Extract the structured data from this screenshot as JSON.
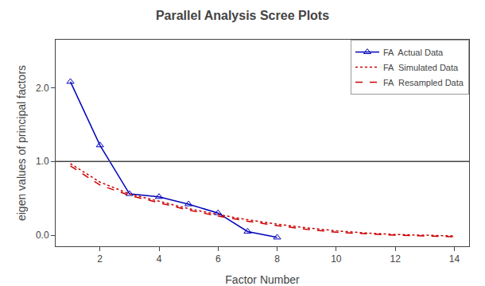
{
  "chart_data": {
    "type": "line",
    "title": "Parallel Analysis Scree Plots",
    "xlabel": "Factor Number",
    "ylabel": "eigen values of principal factors",
    "series": [
      {
        "name": "FA  Actual Data",
        "color": "#0000bb",
        "line_style": "solid",
        "marker": "open_triangle",
        "x": [
          1,
          2,
          3,
          4,
          5,
          6,
          7,
          8
        ],
        "values": [
          2.08,
          1.22,
          0.56,
          0.52,
          0.42,
          0.3,
          0.05,
          -0.03
        ]
      },
      {
        "name": "FA  Simulated Data",
        "color": "#cc0000",
        "line_style": "dotted",
        "x": [
          1,
          2,
          3,
          4,
          5,
          6,
          7,
          8,
          9,
          10,
          11,
          12,
          13,
          14
        ],
        "values": [
          0.97,
          0.72,
          0.56,
          0.46,
          0.36,
          0.28,
          0.21,
          0.15,
          0.1,
          0.06,
          0.03,
          0.01,
          0.0,
          -0.01
        ]
      },
      {
        "name": "FA  Resampled Data",
        "color": "#cc0000",
        "line_style": "dashed",
        "x": [
          1,
          2,
          3,
          4,
          5,
          6,
          7,
          8,
          9,
          10,
          11,
          12,
          13,
          14
        ],
        "values": [
          0.94,
          0.68,
          0.54,
          0.44,
          0.34,
          0.26,
          0.19,
          0.13,
          0.08,
          0.04,
          0.02,
          0.0,
          -0.01,
          -0.02
        ]
      }
    ],
    "hline": {
      "y": 1.0,
      "color": "#444444"
    },
    "xlim": [
      0.5,
      14.5
    ],
    "ylim": [
      -0.15,
      2.65
    ],
    "xticks": [
      2,
      4,
      6,
      8,
      10,
      12,
      14
    ],
    "yticks": [
      {
        "value": 0.0,
        "label": "0.0"
      },
      {
        "value": 1.0,
        "label": "1.0"
      },
      {
        "value": 2.0,
        "label": "2.0"
      }
    ],
    "grid": false,
    "legend": "upper right"
  }
}
